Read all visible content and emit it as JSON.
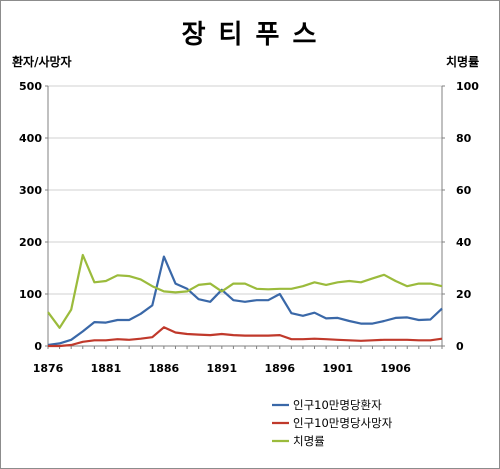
{
  "chart_data": {
    "type": "line",
    "title": "장 티 푸 스",
    "y_left_label": "환자/사망자",
    "y_right_label": "치명률",
    "y_left_range": [
      0,
      500
    ],
    "y_left_ticks": [
      "0",
      "100",
      "200",
      "300",
      "400",
      "500"
    ],
    "y_right_range": [
      0,
      100
    ],
    "y_right_ticks": [
      "0",
      "20",
      "40",
      "60",
      "80",
      "100"
    ],
    "x_range": [
      1876,
      1910
    ],
    "x_ticks": [
      "1876",
      "1881",
      "1886",
      "1891",
      "1896",
      "1901",
      "1906"
    ],
    "grid": "horizontal",
    "legend_position": "bottom-right",
    "series": [
      {
        "name": "인구10만명당환자",
        "axis": "left",
        "color": "#3a68a8",
        "x": [
          1876,
          1877,
          1878,
          1879,
          1880,
          1881,
          1882,
          1883,
          1884,
          1885,
          1886,
          1887,
          1888,
          1889,
          1890,
          1891,
          1892,
          1893,
          1894,
          1895,
          1896,
          1897,
          1898,
          1899,
          1900,
          1901,
          1902,
          1903,
          1904,
          1905,
          1906,
          1907,
          1908,
          1909,
          1910
        ],
        "values": [
          2,
          5,
          12,
          28,
          46,
          45,
          50,
          50,
          62,
          78,
          172,
          120,
          110,
          90,
          85,
          108,
          88,
          85,
          88,
          88,
          100,
          63,
          58,
          64,
          53,
          54,
          48,
          43,
          43,
          48,
          54,
          55,
          50,
          51,
          72
        ]
      },
      {
        "name": "인구10만명당사망자",
        "axis": "left",
        "color": "#c0392b",
        "x": [
          1876,
          1877,
          1878,
          1879,
          1880,
          1881,
          1882,
          1883,
          1884,
          1885,
          1886,
          1887,
          1888,
          1889,
          1890,
          1891,
          1892,
          1893,
          1894,
          1895,
          1896,
          1897,
          1898,
          1899,
          1900,
          1901,
          1902,
          1903,
          1904,
          1905,
          1906,
          1907,
          1908,
          1909,
          1910
        ],
        "values": [
          0,
          0,
          2,
          8,
          11,
          11,
          13,
          12,
          14,
          17,
          36,
          26,
          23,
          22,
          21,
          23,
          21,
          20,
          20,
          20,
          21,
          13,
          13,
          14,
          13,
          12,
          11,
          10,
          11,
          12,
          12,
          12,
          11,
          11,
          14
        ]
      },
      {
        "name": "치명률",
        "axis": "right",
        "color": "#9bbb3c",
        "x": [
          1876,
          1877,
          1878,
          1879,
          1880,
          1881,
          1882,
          1883,
          1884,
          1885,
          1886,
          1887,
          1888,
          1889,
          1890,
          1891,
          1892,
          1893,
          1894,
          1895,
          1896,
          1897,
          1898,
          1899,
          1900,
          1901,
          1902,
          1903,
          1904,
          1905,
          1906,
          1907,
          1908,
          1909,
          1910
        ],
        "values": [
          13,
          7,
          14,
          35,
          24.5,
          25,
          27.2,
          26.9,
          25.6,
          23,
          21,
          20.6,
          21,
          23.5,
          24,
          21,
          24,
          24,
          22,
          21.8,
          22,
          22,
          23,
          24.5,
          23.5,
          24.5,
          25,
          24.5,
          26,
          27.4,
          25,
          23,
          24,
          24,
          23
        ]
      }
    ]
  }
}
